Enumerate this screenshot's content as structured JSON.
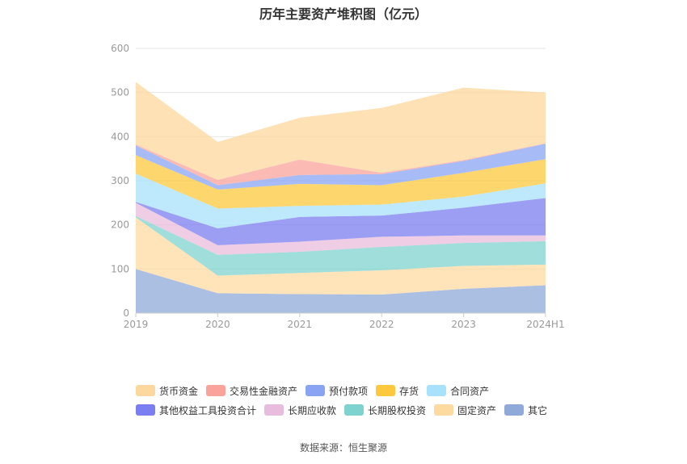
{
  "title": "历年主要资产堆积图（亿元）",
  "source": "数据来源：恒生聚源",
  "chart_data": {
    "type": "area",
    "stacked": true,
    "categories": [
      "2019",
      "2020",
      "2021",
      "2022",
      "2023",
      "2024H1"
    ],
    "ylim": [
      0,
      600
    ],
    "yticks": [
      0,
      100,
      200,
      300,
      400,
      500,
      600
    ],
    "grid": true,
    "legend_position": "bottom",
    "series": [
      {
        "name": "其它",
        "color": "#8fa9d8",
        "values": [
          100,
          45,
          43,
          42,
          55,
          63
        ]
      },
      {
        "name": "固定资产",
        "color": "#fddba0",
        "values": [
          117,
          40,
          48,
          55,
          52,
          47
        ]
      },
      {
        "name": "长期股权投资",
        "color": "#7fd3cf",
        "values": [
          3,
          47,
          48,
          53,
          52,
          53
        ]
      },
      {
        "name": "长期应收款",
        "color": "#e8bcdc",
        "values": [
          30,
          22,
          23,
          23,
          17,
          13
        ]
      },
      {
        "name": "其他权益工具投资合计",
        "color": "#7b7ef0",
        "values": [
          2,
          38,
          56,
          48,
          63,
          85
        ]
      },
      {
        "name": "合同资产",
        "color": "#a8e1fb",
        "values": [
          64,
          45,
          25,
          25,
          25,
          33
        ]
      },
      {
        "name": "存货",
        "color": "#fcc83d",
        "values": [
          42,
          43,
          50,
          44,
          54,
          55
        ]
      },
      {
        "name": "预付款项",
        "color": "#8aa4f4",
        "values": [
          22,
          10,
          20,
          25,
          27,
          35
        ]
      },
      {
        "name": "交易性金融资产",
        "color": "#f9a39b",
        "values": [
          2,
          12,
          35,
          3,
          2,
          1
        ]
      },
      {
        "name": "货币资金",
        "color": "#fdd89e",
        "values": [
          142,
          86,
          95,
          147,
          164,
          115
        ]
      }
    ]
  },
  "legend": {
    "row1": [
      {
        "label": "货币资金",
        "color": "#fdd89e"
      },
      {
        "label": "交易性金融资产",
        "color": "#f9a39b"
      },
      {
        "label": "预付款项",
        "color": "#8aa4f4"
      },
      {
        "label": "存货",
        "color": "#fcc83d"
      },
      {
        "label": "合同资产",
        "color": "#a8e1fb"
      }
    ],
    "row2": [
      {
        "label": "其他权益工具投资合计",
        "color": "#7b7ef0"
      },
      {
        "label": "长期应收款",
        "color": "#e8bcdc"
      },
      {
        "label": "长期股权投资",
        "color": "#7fd3cf"
      },
      {
        "label": "固定资产",
        "color": "#fddba0"
      },
      {
        "label": "其它",
        "color": "#8fa9d8"
      }
    ]
  }
}
